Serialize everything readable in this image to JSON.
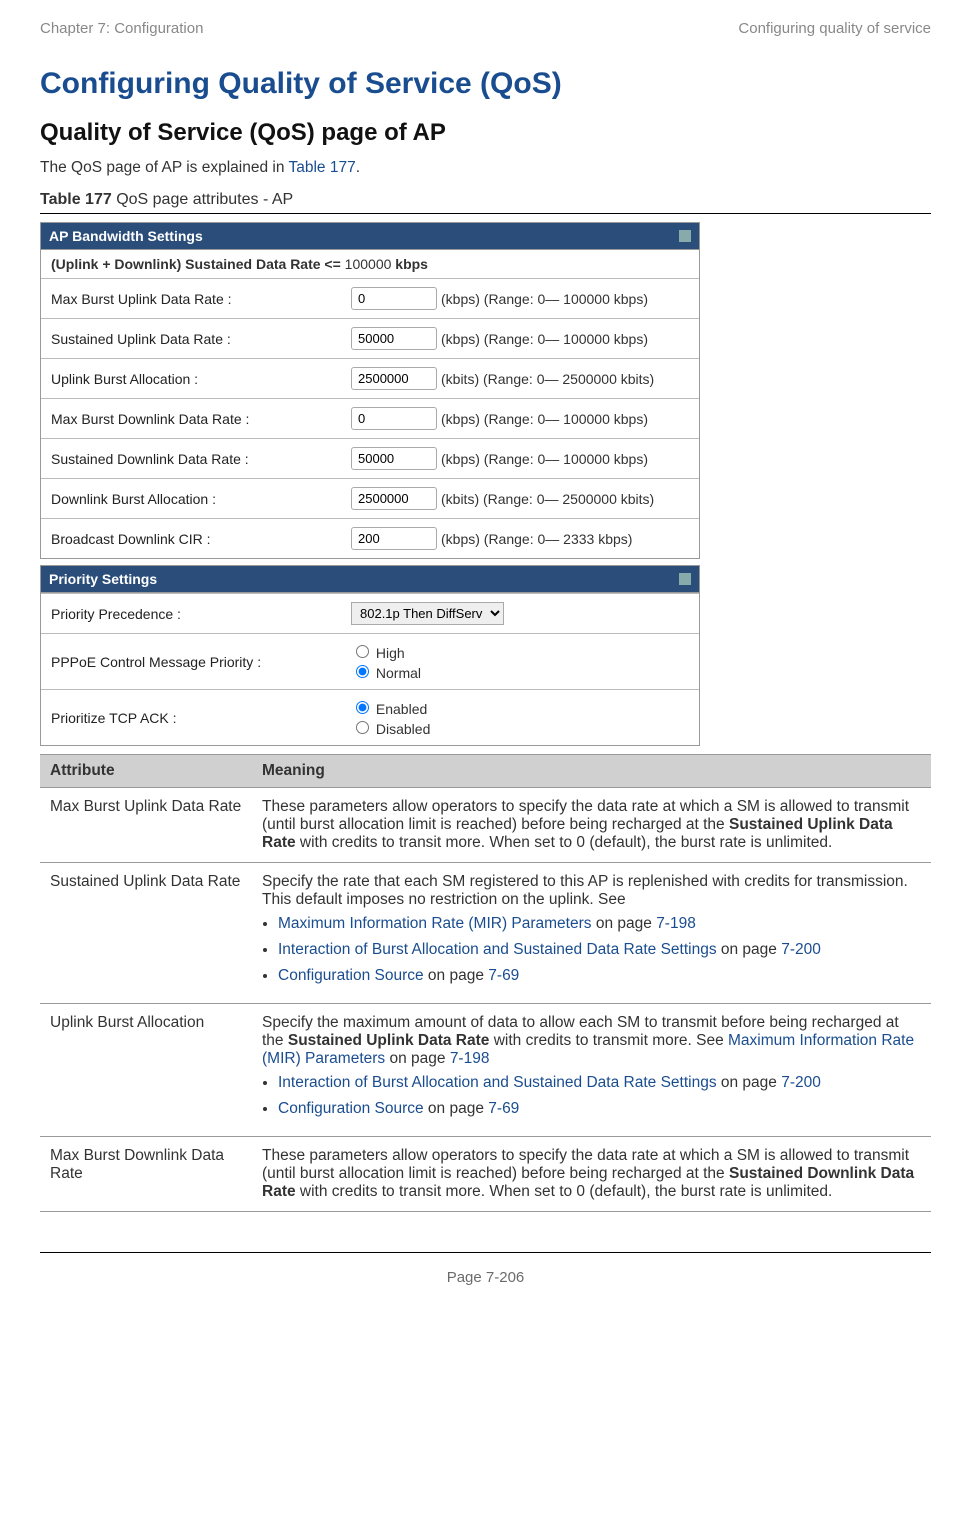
{
  "header": {
    "left": "Chapter 7:  Configuration",
    "right": "Configuring quality of service"
  },
  "titles": {
    "main": "Configuring Quality of Service (QoS)",
    "sub": "Quality of Service (QoS) page of AP"
  },
  "intro": {
    "pre": "The QoS page of AP is explained in ",
    "link": "Table 177",
    "post": "."
  },
  "caption": {
    "bold": "Table 177",
    "rest": " QoS page attributes - AP"
  },
  "panel1": {
    "title": "AP Bandwidth Settings",
    "sumline": {
      "b1": "(Uplink + Downlink) Sustained Data Rate <=",
      "val": " 100000 ",
      "b2": "kbps"
    },
    "rows": [
      {
        "label": "Max Burst Uplink Data Rate :",
        "value": "0",
        "suffix": "(kbps) (Range: 0— 100000 kbps)"
      },
      {
        "label": "Sustained Uplink Data Rate :",
        "value": "50000",
        "suffix": "(kbps) (Range: 0— 100000 kbps)"
      },
      {
        "label": "Uplink Burst Allocation :",
        "value": "2500000",
        "suffix": "(kbits) (Range: 0— 2500000 kbits)"
      },
      {
        "label": "Max Burst Downlink Data Rate :",
        "value": "0",
        "suffix": "(kbps) (Range: 0— 100000 kbps)"
      },
      {
        "label": "Sustained Downlink Data Rate :",
        "value": "50000",
        "suffix": "(kbps) (Range: 0— 100000 kbps)"
      },
      {
        "label": "Downlink Burst Allocation :",
        "value": "2500000",
        "suffix": "(kbits) (Range: 0— 2500000 kbits)"
      },
      {
        "label": "Broadcast Downlink CIR :",
        "value": "200",
        "suffix": "(kbps) (Range: 0— 2333 kbps)"
      }
    ]
  },
  "panel2": {
    "title": "Priority Settings",
    "precedence_label": "Priority Precedence :",
    "precedence_value": "802.1p Then DiffServ",
    "pppoe_label": "PPPoE Control Message Priority :",
    "pppoe_opt1": "High",
    "pppoe_opt2": "Normal",
    "tcp_label": "Prioritize TCP ACK :",
    "tcp_opt1": "Enabled",
    "tcp_opt2": "Disabled"
  },
  "attr_table": {
    "head": {
      "c1": "Attribute",
      "c2": "Meaning"
    },
    "r1": {
      "name": "Max Burst Uplink Data Rate",
      "t1": "These parameters allow operators to specify the data rate at which a SM is allowed to transmit (until burst allocation limit is reached) before being recharged at the ",
      "b": "Sustained Uplink Data Rate",
      "t2": " with credits to transit more. When set to 0 (default), the burst rate is unlimited."
    },
    "r2": {
      "name": "Sustained Uplink Data Rate",
      "t": "Specify the rate that each SM registered to this AP is replenished with credits for transmission. This default imposes no restriction on the uplink. See",
      "li1a": "Maximum Information Rate (MIR) Parameters",
      "li1b": " on page ",
      "li1c": "7-198",
      "li2a": "Interaction of Burst Allocation and Sustained Data Rate Settings",
      "li2b": " on page ",
      "li2c": "7-200",
      "li3a": "Configuration Source",
      "li3b": " on page ",
      "li3c": "7-69"
    },
    "r3": {
      "name": "Uplink Burst Allocation",
      "t1": "Specify the maximum amount of data to allow each SM to transmit before being recharged at the ",
      "b": "Sustained Uplink Data Rate",
      "t2": " with credits to transmit more. See ",
      "t3a": "Maximum Information Rate (MIR) Parameters",
      "t3b": " on page ",
      "t3c": "7-198",
      "li1a": "Interaction of Burst Allocation and Sustained Data Rate Settings",
      "li1b": " on page ",
      "li1c": "7-200",
      "li2a": "Configuration Source",
      "li2b": " on page ",
      "li2c": "7-69"
    },
    "r4": {
      "name": "Max Burst Downlink Data Rate",
      "t1": "These parameters allow operators to specify the data rate at which a SM is allowed to transmit (until burst allocation limit is reached) before being recharged at the ",
      "b": "Sustained Downlink Data Rate",
      "t2": " with credits to transit more. When set to 0 (default), the burst rate is unlimited."
    }
  },
  "footer": "Page 7-206"
}
